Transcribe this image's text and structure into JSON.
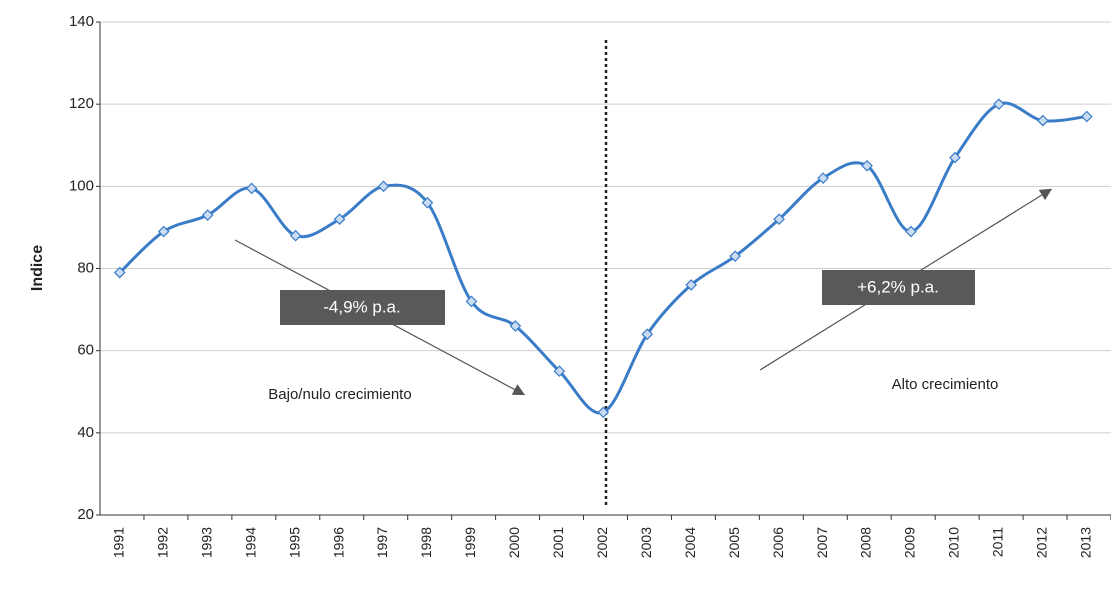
{
  "chart_data": {
    "type": "line",
    "y_label": "Indice",
    "categories": [
      "1991",
      "1992",
      "1993",
      "1994",
      "1995",
      "1996",
      "1997",
      "1998",
      "1999",
      "2000",
      "2001",
      "2002",
      "2003",
      "2004",
      "2005",
      "2006",
      "2007",
      "2008",
      "2009",
      "2010",
      "2011",
      "2012",
      "2013"
    ],
    "series": [
      {
        "name": "Indice",
        "color": "#3a7cc8",
        "values": [
          79,
          89,
          93,
          99.5,
          88,
          92,
          100,
          96,
          72,
          66,
          55,
          45,
          64,
          76,
          83,
          92,
          102,
          105,
          89,
          107,
          120,
          116,
          117
        ]
      }
    ],
    "ylim": [
      20,
      140
    ],
    "yticks": [
      20,
      40,
      60,
      80,
      100,
      120,
      140
    ],
    "grid": true,
    "annotations": [
      "-4,9% p.a.",
      "+6,2% p.a.",
      "Bajo/nulo crecimiento",
      "Alto crecimiento"
    ]
  }
}
